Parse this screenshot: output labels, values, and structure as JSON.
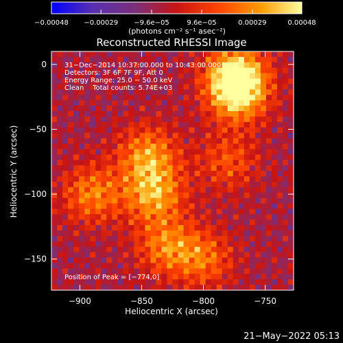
{
  "chart_data": {
    "type": "heatmap",
    "title": "Reconstructed RHESSI Image",
    "xlabel": "Heliocentric X (arcsec)",
    "ylabel": "Heliocentric Y (arcsec)",
    "xlim": [
      -923,
      -727
    ],
    "ylim": [
      -174,
      10
    ],
    "x_ticks": [
      {
        "value": -900,
        "label": "−900"
      },
      {
        "value": -850,
        "label": "−850"
      },
      {
        "value": -800,
        "label": "−800"
      },
      {
        "value": -750,
        "label": "−750"
      }
    ],
    "y_ticks": [
      {
        "value": 0,
        "label": "0"
      },
      {
        "value": -50,
        "label": "−50"
      },
      {
        "value": -100,
        "label": "−100"
      },
      {
        "value": -150,
        "label": "−150"
      }
    ],
    "colorbar": {
      "unit_label": "(photons cm⁻² s⁻¹ asec⁻²)",
      "range": [
        -0.00048,
        0.00048
      ],
      "ticks": [
        {
          "value": -0.00048,
          "label": "−0.00048"
        },
        {
          "value": -0.00029,
          "label": "−0.00029"
        },
        {
          "value": -9.6e-05,
          "label": "−9.6e−05"
        },
        {
          "value": 9.6e-05,
          "label": "9.6e−05"
        },
        {
          "value": 0.00029,
          "label": "0.00029"
        },
        {
          "value": 0.00048,
          "label": "0.00048"
        }
      ],
      "colors": [
        "#0000ff",
        "#5a2fb0",
        "#7a2f7a",
        "#c81414",
        "#ff4400",
        "#ff9a00",
        "#ffffa0"
      ]
    },
    "annotations": [
      "31−Dec−2014 10:37:00.000 to 10:43:00.000",
      "Detectors: 3F 6F 7F 9F, Att 0",
      "Energy Range: 25.0 − 50.0 keV",
      "Clean    Total counts: 5.74E+03"
    ],
    "peak_text": "Position of Peak = [−774,0]",
    "peak_position": [
      -774,
      0
    ],
    "bright_regions": [
      {
        "x": -774,
        "y": -8,
        "level": 1.0
      },
      {
        "x": -772,
        "y": -24,
        "level": 0.8
      },
      {
        "x": -840,
        "y": -100,
        "level": 0.78
      },
      {
        "x": -845,
        "y": -70,
        "level": 0.72
      },
      {
        "x": -890,
        "y": -100,
        "level": 0.65
      },
      {
        "x": -830,
        "y": -140,
        "level": 0.62
      },
      {
        "x": -800,
        "y": -150,
        "level": 0.55
      },
      {
        "x": -780,
        "y": -75,
        "level": 0.45
      }
    ]
  },
  "footer": {
    "timestamp": "21−May−2022 05:13"
  }
}
